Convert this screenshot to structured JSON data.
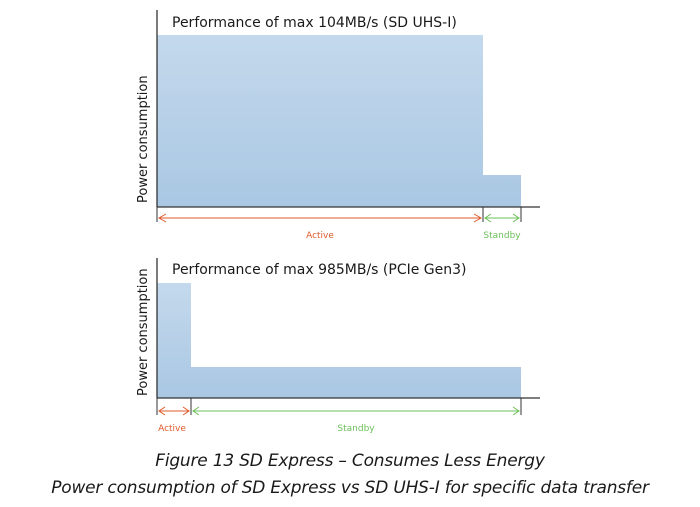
{
  "charts": [
    {
      "title": "Performance of max 104MB/s (SD UHS-I)",
      "ylabel": "Power consumption",
      "active_label": "Active",
      "standby_label": "Standby"
    },
    {
      "title": "Performance of max 985MB/s (PCIe Gen3)",
      "ylabel": "Power consumption",
      "active_label": "Active",
      "standby_label": "Standby"
    }
  ],
  "caption": {
    "line1": "Figure 13 SD Express – Consumes Less Energy",
    "line2": "Power consumption of SD Express vs SD UHS-I for specific data transfer"
  },
  "colors": {
    "bar_fill": "#abc9e4",
    "bar_fill_light": "#c3d9ed",
    "active": "#e05a2b",
    "standby": "#6bbf59",
    "axis": "#333333"
  }
}
